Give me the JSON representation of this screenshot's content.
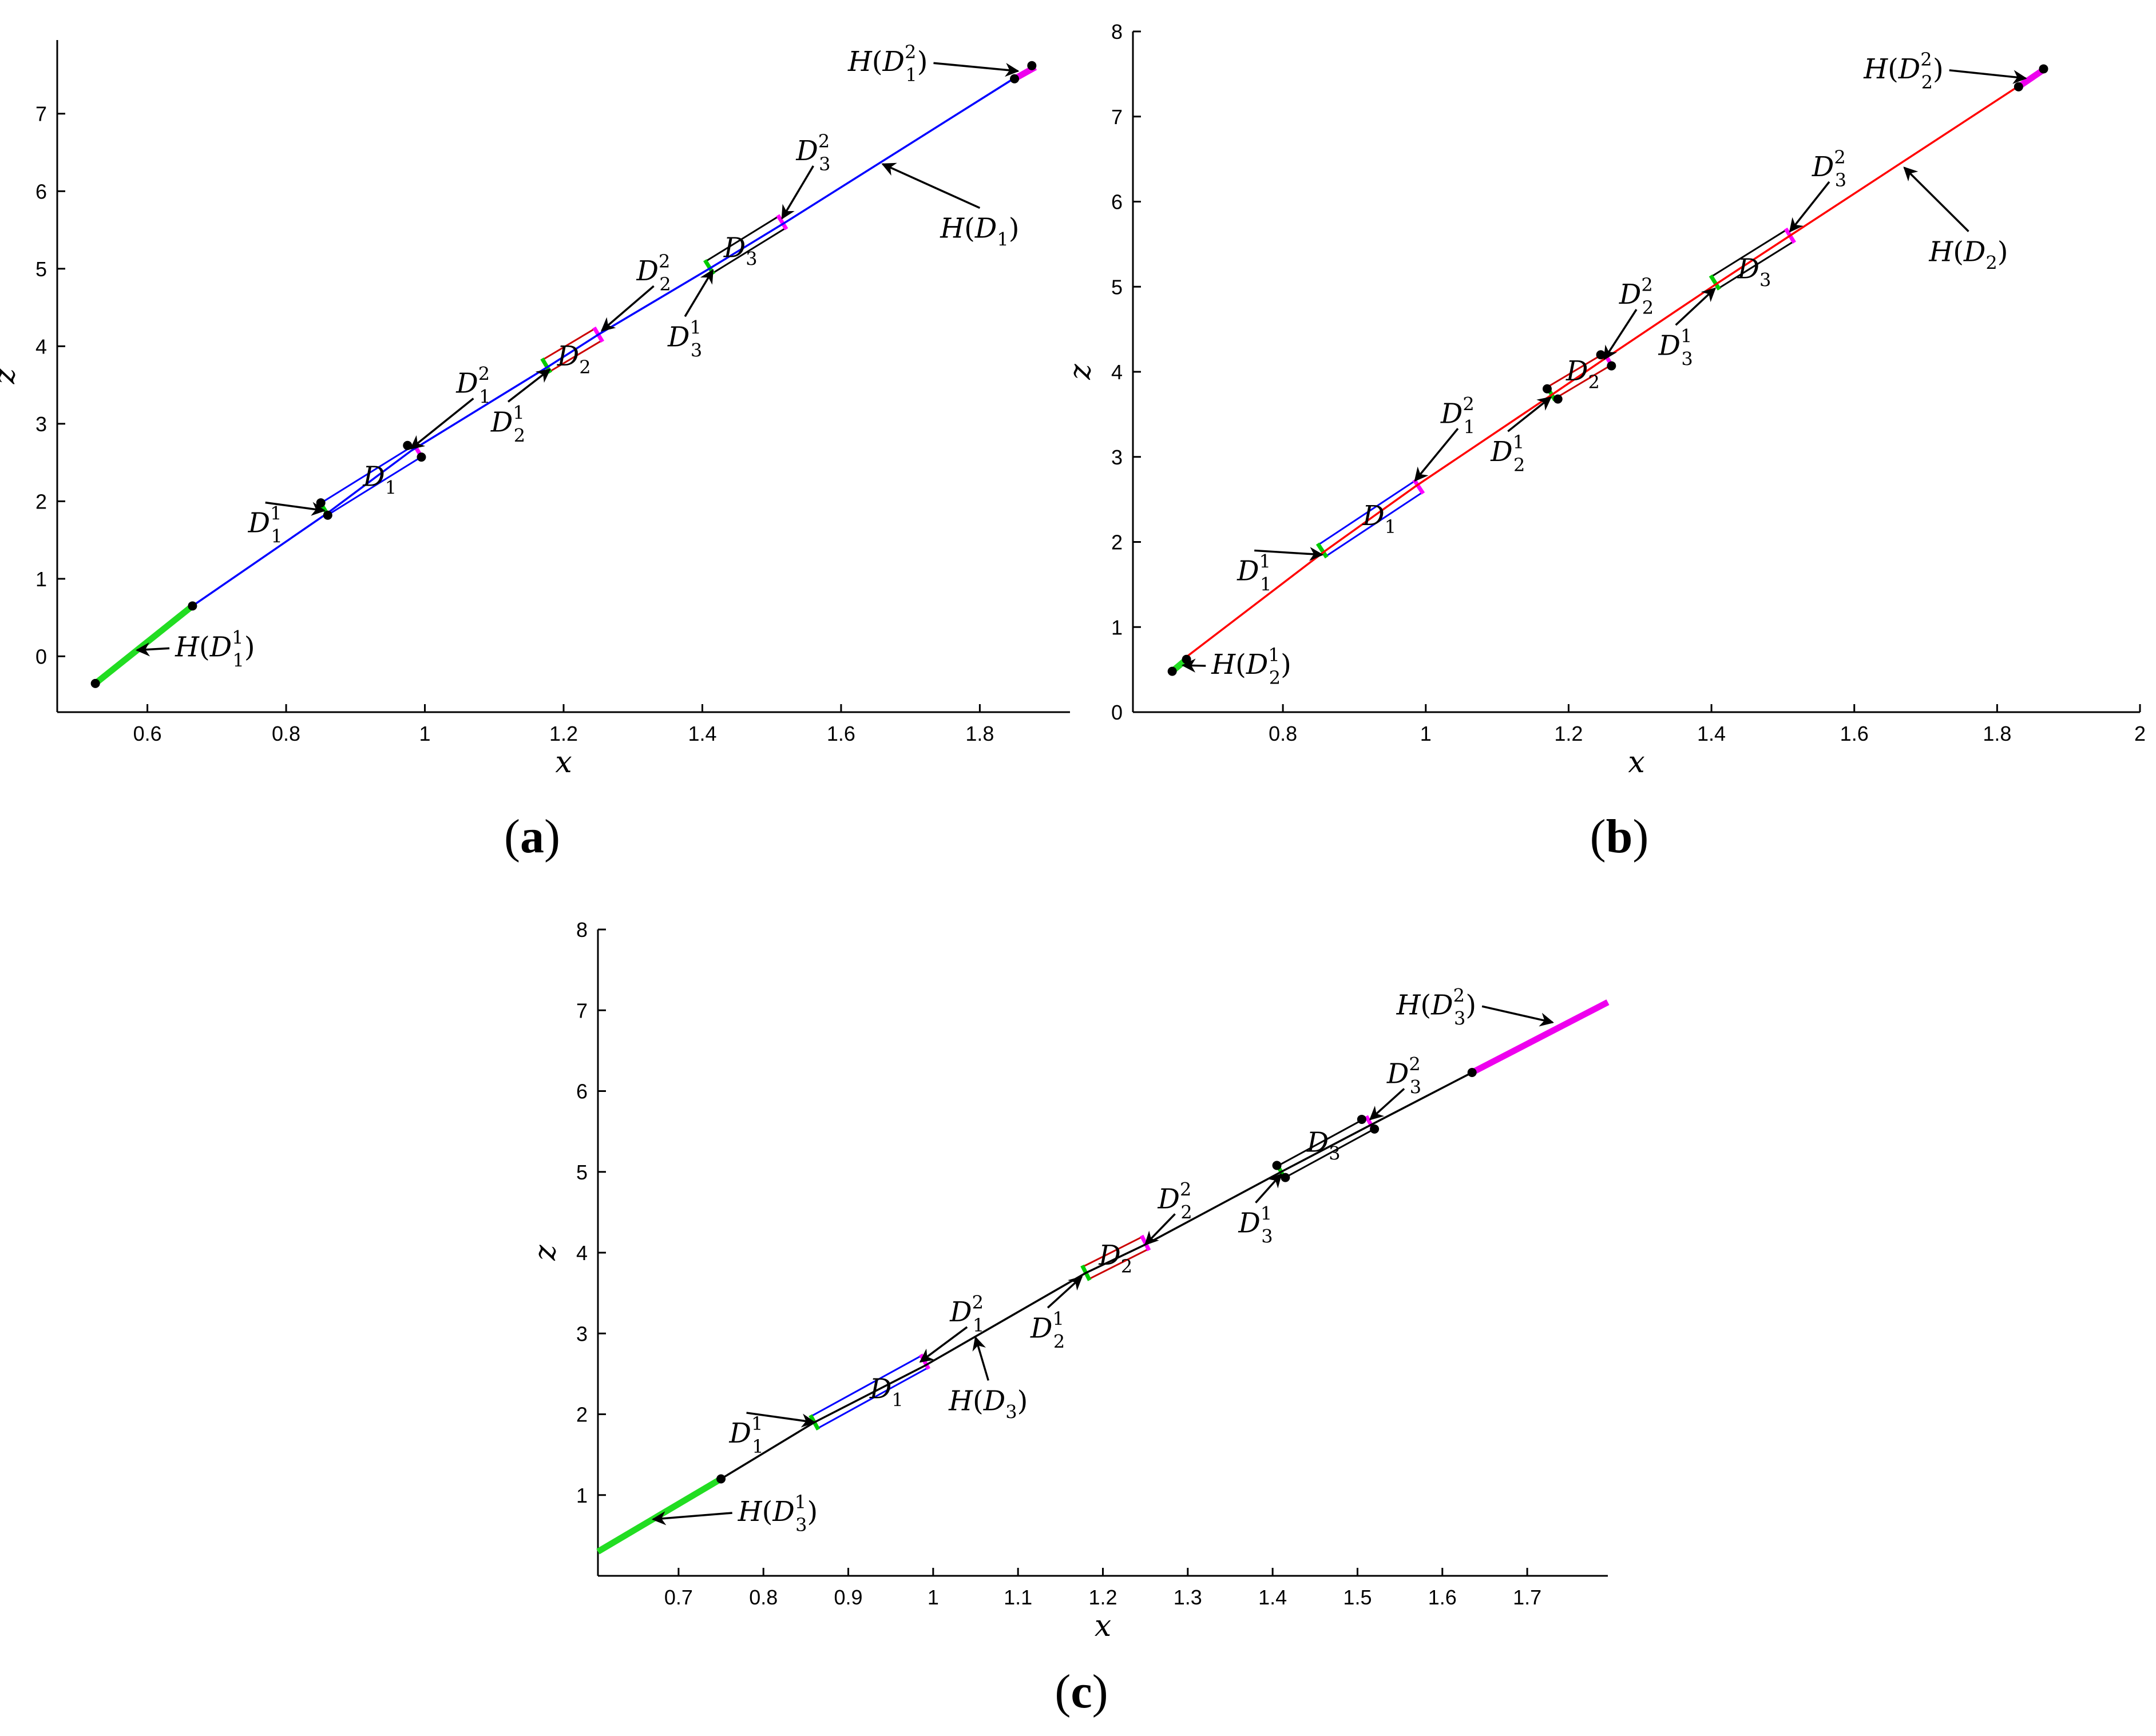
{
  "chart_data": [
    {
      "panel": "a",
      "type": "line",
      "panel_label": "(a)",
      "xlabel": "x",
      "ylabel": "z",
      "xlim": [
        0.47,
        1.93
      ],
      "ylim": [
        -0.72,
        7.95
      ],
      "xticks": [
        0.6,
        0.8,
        1,
        1.2,
        1.4,
        1.6,
        1.8
      ],
      "xtick_labels": [
        "0.6",
        "0.8",
        "1",
        "1.2",
        "1.4",
        "1.6",
        "1.8"
      ],
      "yticks": [
        0,
        1,
        2,
        3,
        4,
        5,
        6,
        7
      ],
      "ytick_labels": [
        "0",
        "1",
        "2",
        "3",
        "4",
        "5",
        "6",
        "7"
      ],
      "line_color": "#0000ff",
      "main_curve": [
        [
          0.665,
          0.65
        ],
        [
          0.86,
          1.85
        ],
        [
          0.98,
          2.65
        ],
        [
          1.18,
          3.75
        ],
        [
          1.25,
          4.15
        ],
        [
          1.41,
          5.0
        ],
        [
          1.52,
          5.6
        ],
        [
          1.875,
          7.6
        ]
      ],
      "green_segment": [
        [
          0.525,
          -0.35
        ],
        [
          0.665,
          0.65
        ]
      ],
      "magenta_segment": [
        [
          1.85,
          7.45
        ],
        [
          1.88,
          7.6
        ]
      ],
      "points": [
        [
          0.525,
          -0.35
        ],
        [
          0.665,
          0.65
        ],
        [
          0.85,
          1.98
        ],
        [
          0.86,
          1.82
        ],
        [
          0.975,
          2.72
        ],
        [
          0.995,
          2.57
        ],
        [
          1.85,
          7.45
        ],
        [
          1.875,
          7.62
        ]
      ],
      "boxes": [
        {
          "label": "D_1",
          "x0": 0.855,
          "x1": 0.99,
          "y0": 1.9,
          "y1": 2.65,
          "w": 0.12,
          "color": "#0000ff"
        },
        {
          "label": "D_2",
          "x0": 1.175,
          "x1": 1.25,
          "y0": 3.75,
          "y1": 4.15,
          "w": 0.12,
          "color": "#cc0000"
        },
        {
          "label": "D_3",
          "x0": 1.41,
          "x1": 1.515,
          "y0": 5.02,
          "y1": 5.6,
          "w": 0.12,
          "color": "#000000"
        }
      ],
      "annotations": [
        {
          "label": "H(D_1^2)",
          "tx": 1.725,
          "ty": 7.55,
          "ax": 1.855,
          "ay": 7.55,
          "anchor": "end"
        },
        {
          "label": "D_3^2",
          "tx": 1.56,
          "ty": 6.4,
          "ax": 1.515,
          "ay": 5.65,
          "anchor": "middle"
        },
        {
          "label": "H(D_1)",
          "tx": 1.8,
          "ty": 5.4,
          "ax": 1.66,
          "ay": 6.35,
          "anchor": "middle"
        },
        {
          "label": "D_2^2",
          "tx": 1.33,
          "ty": 4.85,
          "ax": 1.255,
          "ay": 4.2,
          "anchor": "middle"
        },
        {
          "label": "D_3^1",
          "tx": 1.375,
          "ty": 4.0,
          "ax": 1.415,
          "ay": 4.98,
          "anchor": "middle"
        },
        {
          "label": "D_1^2",
          "tx": 1.07,
          "ty": 3.4,
          "ax": 0.98,
          "ay": 2.68,
          "anchor": "middle"
        },
        {
          "label": "D_2^1",
          "tx": 1.12,
          "ty": 2.9,
          "ax": 1.18,
          "ay": 3.7,
          "anchor": "middle"
        },
        {
          "label": "D_1^1",
          "tx": 0.77,
          "ty": 1.6,
          "ax": 0.855,
          "ay": 1.88,
          "anchor": "middle"
        },
        {
          "label": "H(D_1^1)",
          "tx": 0.64,
          "ty": 0.0,
          "ax": 0.585,
          "ay": 0.08,
          "anchor": "start"
        }
      ],
      "box_labels": [
        {
          "label": "D_1",
          "x": 0.935,
          "y": 2.2
        },
        {
          "label": "D_2",
          "x": 1.215,
          "y": 3.75
        },
        {
          "label": "D_3",
          "x": 1.455,
          "y": 5.15
        }
      ]
    },
    {
      "panel": "b",
      "type": "line",
      "panel_label": "(b)",
      "xlabel": "x",
      "ylabel": "z",
      "xlim": [
        0.59,
        2.0
      ],
      "ylim": [
        0,
        8
      ],
      "xticks": [
        0.8,
        1,
        1.2,
        1.4,
        1.6,
        1.8,
        2
      ],
      "xtick_labels": [
        "0.8",
        "1",
        "1.2",
        "1.4",
        "1.6",
        "1.8",
        "2"
      ],
      "yticks": [
        0,
        1,
        2,
        3,
        4,
        5,
        6,
        7,
        8
      ],
      "ytick_labels": [
        "0",
        "1",
        "2",
        "3",
        "4",
        "5",
        "6",
        "7",
        "8"
      ],
      "line_color": "#ff0000",
      "main_curve": [
        [
          0.665,
          0.65
        ],
        [
          0.86,
          1.9
        ],
        [
          0.985,
          2.65
        ],
        [
          1.18,
          3.75
        ],
        [
          1.25,
          4.15
        ],
        [
          1.41,
          5.05
        ],
        [
          1.51,
          5.6
        ],
        [
          1.865,
          7.55
        ]
      ],
      "green_segment": [
        [
          0.645,
          0.48
        ],
        [
          0.665,
          0.62
        ]
      ],
      "magenta_segment": [
        [
          1.83,
          7.35
        ],
        [
          1.865,
          7.55
        ]
      ],
      "points": [
        [
          0.645,
          0.48
        ],
        [
          0.665,
          0.62
        ],
        [
          1.17,
          3.8
        ],
        [
          1.185,
          3.68
        ],
        [
          1.245,
          4.2
        ],
        [
          1.26,
          4.07
        ],
        [
          1.83,
          7.35
        ],
        [
          1.865,
          7.56
        ]
      ],
      "boxes": [
        {
          "label": "D_1",
          "x0": 0.855,
          "x1": 0.99,
          "y0": 1.9,
          "y1": 2.65,
          "w": 0.12,
          "color": "#0000ff"
        },
        {
          "label": "D_2",
          "x0": 1.175,
          "x1": 1.255,
          "y0": 3.75,
          "y1": 4.15,
          "w": 0.12,
          "color": "#cc0000"
        },
        {
          "label": "D_3",
          "x0": 1.405,
          "x1": 1.51,
          "y0": 5.05,
          "y1": 5.6,
          "w": 0.12,
          "color": "#000000"
        }
      ],
      "annotations": [
        {
          "label": "H(D_2^2)",
          "tx": 1.725,
          "ty": 7.45,
          "ax": 1.84,
          "ay": 7.45,
          "anchor": "end"
        },
        {
          "label": "D_3^2",
          "tx": 1.565,
          "ty": 6.3,
          "ax": 1.51,
          "ay": 5.65,
          "anchor": "middle"
        },
        {
          "label": "H(D_2)",
          "tx": 1.76,
          "ty": 5.3,
          "ax": 1.67,
          "ay": 6.4,
          "anchor": "middle"
        },
        {
          "label": "D_2^2",
          "tx": 1.295,
          "ty": 4.8,
          "ax": 1.25,
          "ay": 4.15,
          "anchor": "middle"
        },
        {
          "label": "D_3^1",
          "tx": 1.35,
          "ty": 4.2,
          "ax": 1.405,
          "ay": 4.98,
          "anchor": "middle"
        },
        {
          "label": "D_1^2",
          "tx": 1.045,
          "ty": 3.4,
          "ax": 0.985,
          "ay": 2.72,
          "anchor": "middle"
        },
        {
          "label": "D_2^1",
          "tx": 1.115,
          "ty": 2.95,
          "ax": 1.175,
          "ay": 3.7,
          "anchor": "middle"
        },
        {
          "label": "D_1^1",
          "tx": 0.76,
          "ty": 1.55,
          "ax": 0.855,
          "ay": 1.85,
          "anchor": "middle"
        },
        {
          "label": "H(D_2^1)",
          "tx": 0.7,
          "ty": 0.45,
          "ax": 0.66,
          "ay": 0.55,
          "anchor": "start"
        }
      ],
      "box_labels": [
        {
          "label": "D_1",
          "x": 0.935,
          "y": 2.2
        },
        {
          "label": "D_2",
          "x": 1.22,
          "y": 3.9
        },
        {
          "label": "D_3",
          "x": 1.46,
          "y": 5.1
        }
      ]
    },
    {
      "panel": "c",
      "type": "line",
      "panel_label": "(c)",
      "xlabel": "x",
      "ylabel": "z",
      "xlim": [
        0.605,
        1.795
      ],
      "ylim": [
        0,
        8
      ],
      "xticks": [
        0.7,
        0.8,
        0.9,
        1,
        1.1,
        1.2,
        1.3,
        1.4,
        1.5,
        1.6,
        1.7
      ],
      "xtick_labels": [
        "0.7",
        "0.8",
        "0.9",
        "1",
        "1.1",
        "1.2",
        "1.3",
        "1.4",
        "1.5",
        "1.6",
        "1.7"
      ],
      "yticks": [
        1,
        2,
        3,
        4,
        5,
        6,
        7,
        8
      ],
      "ytick_labels": [
        "1",
        "2",
        "3",
        "4",
        "5",
        "6",
        "7",
        "8"
      ],
      "line_color": "#000000",
      "main_curve": [
        [
          0.75,
          1.2
        ],
        [
          0.86,
          1.9
        ],
        [
          0.99,
          2.6
        ],
        [
          1.18,
          3.75
        ],
        [
          1.25,
          4.1
        ],
        [
          1.41,
          5.0
        ],
        [
          1.51,
          5.55
        ],
        [
          1.635,
          6.23
        ]
      ],
      "green_segment": [
        [
          0.605,
          0.3
        ],
        [
          0.75,
          1.2
        ]
      ],
      "magenta_segment": [
        [
          1.635,
          6.23
        ],
        [
          1.795,
          7.1
        ]
      ],
      "points": [
        [
          0.75,
          1.2
        ],
        [
          1.405,
          5.08
        ],
        [
          1.415,
          4.93
        ],
        [
          1.505,
          5.65
        ],
        [
          1.52,
          5.53
        ],
        [
          1.635,
          6.23
        ]
      ],
      "boxes": [
        {
          "label": "D_1",
          "x0": 0.86,
          "x1": 0.99,
          "y0": 1.9,
          "y1": 2.65,
          "w": 0.12,
          "color": "#0000ff"
        },
        {
          "label": "D_2",
          "x0": 1.18,
          "x1": 1.25,
          "y0": 3.75,
          "y1": 4.12,
          "w": 0.12,
          "color": "#cc0000"
        },
        {
          "label": "D_3",
          "x0": 1.41,
          "x1": 1.515,
          "y0": 5.0,
          "y1": 5.6,
          "w": 0.12,
          "color": "#000000"
        }
      ],
      "annotations": [
        {
          "label": "H(D_3^2)",
          "tx": 1.64,
          "ty": 6.95,
          "ax": 1.73,
          "ay": 6.85,
          "anchor": "end"
        },
        {
          "label": "D_3^2",
          "tx": 1.555,
          "ty": 6.1,
          "ax": 1.515,
          "ay": 5.65,
          "anchor": "middle"
        },
        {
          "label": "D_2^2",
          "tx": 1.285,
          "ty": 4.55,
          "ax": 1.25,
          "ay": 4.1,
          "anchor": "middle"
        },
        {
          "label": "D_3^1",
          "tx": 1.38,
          "ty": 4.25,
          "ax": 1.41,
          "ay": 4.97,
          "anchor": "middle"
        },
        {
          "label": "D_1^2",
          "tx": 1.04,
          "ty": 3.15,
          "ax": 0.985,
          "ay": 2.65,
          "anchor": "middle"
        },
        {
          "label": "H(D_3)",
          "tx": 1.065,
          "ty": 2.05,
          "ax": 1.05,
          "ay": 2.95,
          "anchor": "middle"
        },
        {
          "label": "D_2^1",
          "tx": 1.135,
          "ty": 2.95,
          "ax": 1.175,
          "ay": 3.7,
          "anchor": "middle"
        },
        {
          "label": "D_1^1",
          "tx": 0.78,
          "ty": 1.65,
          "ax": 0.86,
          "ay": 1.9,
          "anchor": "middle"
        },
        {
          "label": "H(D_3^1)",
          "tx": 0.77,
          "ty": 0.68,
          "ax": 0.67,
          "ay": 0.7,
          "anchor": "start"
        }
      ],
      "box_labels": [
        {
          "label": "D_1",
          "x": 0.945,
          "y": 2.2
        },
        {
          "label": "D_2",
          "x": 1.215,
          "y": 3.85
        },
        {
          "label": "D_3",
          "x": 1.46,
          "y": 5.25
        }
      ]
    }
  ]
}
